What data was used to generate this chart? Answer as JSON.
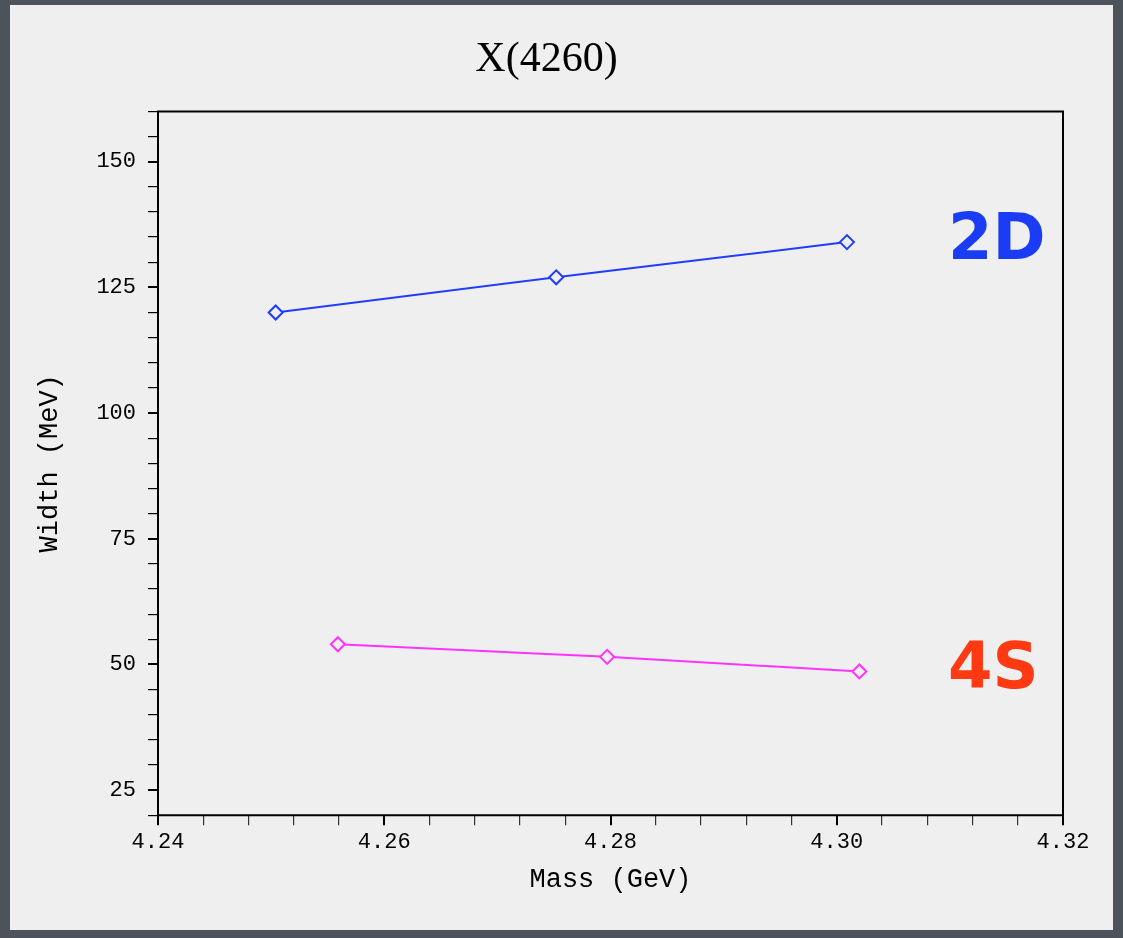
{
  "chart_data": {
    "type": "line",
    "title": "X(4260)",
    "xlabel": "Mass (GeV)",
    "ylabel": "Width (MeV)",
    "marker": "diamond",
    "grid": false,
    "legend": "right",
    "xlim": [
      4.24,
      4.32
    ],
    "ylim": [
      20,
      160
    ],
    "xticks": [
      {
        "value": 4.24,
        "label": "4.24"
      },
      {
        "value": 4.244,
        "label": null
      },
      {
        "value": 4.248,
        "label": null
      },
      {
        "value": 4.252,
        "label": null
      },
      {
        "value": 4.256,
        "label": null
      },
      {
        "value": 4.26,
        "label": "4.26"
      },
      {
        "value": 4.264,
        "label": null
      },
      {
        "value": 4.268,
        "label": null
      },
      {
        "value": 4.272,
        "label": null
      },
      {
        "value": 4.276,
        "label": null
      },
      {
        "value": 4.28,
        "label": "4.28"
      },
      {
        "value": 4.284,
        "label": null
      },
      {
        "value": 4.288,
        "label": null
      },
      {
        "value": 4.292,
        "label": null
      },
      {
        "value": 4.296,
        "label": null
      },
      {
        "value": 4.3,
        "label": "4.30"
      },
      {
        "value": 4.304,
        "label": null
      },
      {
        "value": 4.308,
        "label": null
      },
      {
        "value": 4.312,
        "label": null
      },
      {
        "value": 4.316,
        "label": null
      },
      {
        "value": 4.32,
        "label": "4.32"
      }
    ],
    "yticks": [
      {
        "value": 20,
        "label": null
      },
      25,
      {
        "value": 30,
        "label": null
      },
      {
        "value": 35,
        "label": null
      },
      {
        "value": 40,
        "label": null
      },
      {
        "value": 45,
        "label": null
      },
      50,
      {
        "value": 55,
        "label": null
      },
      {
        "value": 60,
        "label": null
      },
      {
        "value": 65,
        "label": null
      },
      {
        "value": 70,
        "label": null
      },
      75,
      {
        "value": 80,
        "label": null
      },
      {
        "value": 85,
        "label": null
      },
      {
        "value": 90,
        "label": null
      },
      {
        "value": 95,
        "label": null
      },
      100,
      {
        "value": 105,
        "label": null
      },
      {
        "value": 110,
        "label": null
      },
      {
        "value": 115,
        "label": null
      },
      {
        "value": 120,
        "label": null
      },
      125,
      {
        "value": 130,
        "label": null
      },
      {
        "value": 135,
        "label": null
      },
      {
        "value": 140,
        "label": null
      },
      {
        "value": 145,
        "label": null
      },
      150,
      {
        "value": 155,
        "label": null
      },
      {
        "value": 160,
        "label": null
      }
    ],
    "series": [
      {
        "name": "2D",
        "color": "#1f3cff",
        "x": [
          4.2504,
          4.2752,
          4.3009
        ],
        "values": [
          120,
          127,
          134
        ]
      },
      {
        "name": "4S",
        "color": "#ff33ff",
        "x": [
          4.2559,
          4.2797,
          4.302
        ],
        "values": [
          54,
          51.5,
          48.6
        ]
      }
    ]
  }
}
